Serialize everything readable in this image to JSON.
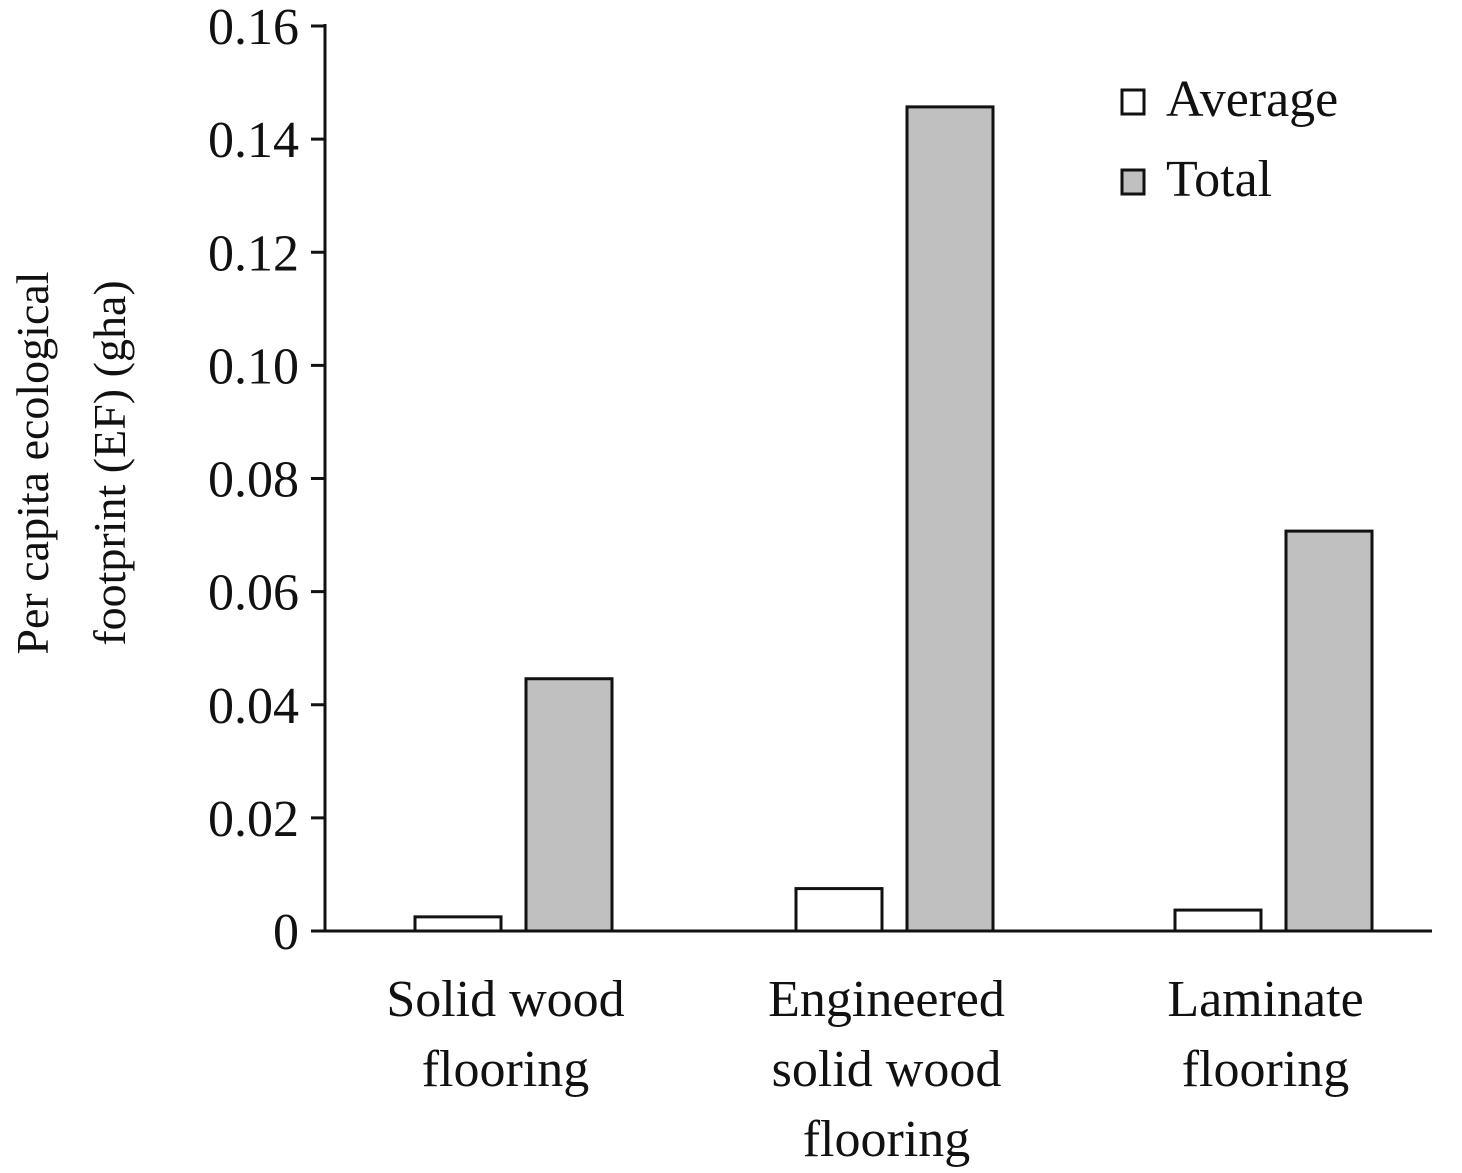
{
  "chart_data": {
    "type": "bar",
    "categories": [
      [
        "Solid wood",
        "flooring"
      ],
      [
        "Engineered",
        "solid wood",
        "flooring"
      ],
      [
        "Laminate",
        "flooring"
      ]
    ],
    "series": [
      {
        "name": "Average",
        "values": [
          0.0025,
          0.0075,
          0.0037
        ],
        "color": "#ffffff"
      },
      {
        "name": "Total",
        "values": [
          0.0446,
          0.1457,
          0.0707
        ],
        "color": "#c0c0c0"
      }
    ],
    "title": "",
    "xlabel": "",
    "ylabel": [
      "Per capita ecological",
      "footprint (EF) (gha)"
    ],
    "ylim": [
      0,
      0.16
    ],
    "yticks": [
      0,
      0.02,
      0.04,
      0.06,
      0.08,
      0.1,
      0.12,
      0.14,
      0.16
    ],
    "ytick_labels": [
      "0",
      "0.02",
      "0.04",
      "0.06",
      "0.08",
      "0.10",
      "0.12",
      "0.14",
      "0.16"
    ],
    "grid": false,
    "legend": "top-right",
    "colors": {
      "axis": "#111111",
      "background": "#ffffff"
    }
  }
}
